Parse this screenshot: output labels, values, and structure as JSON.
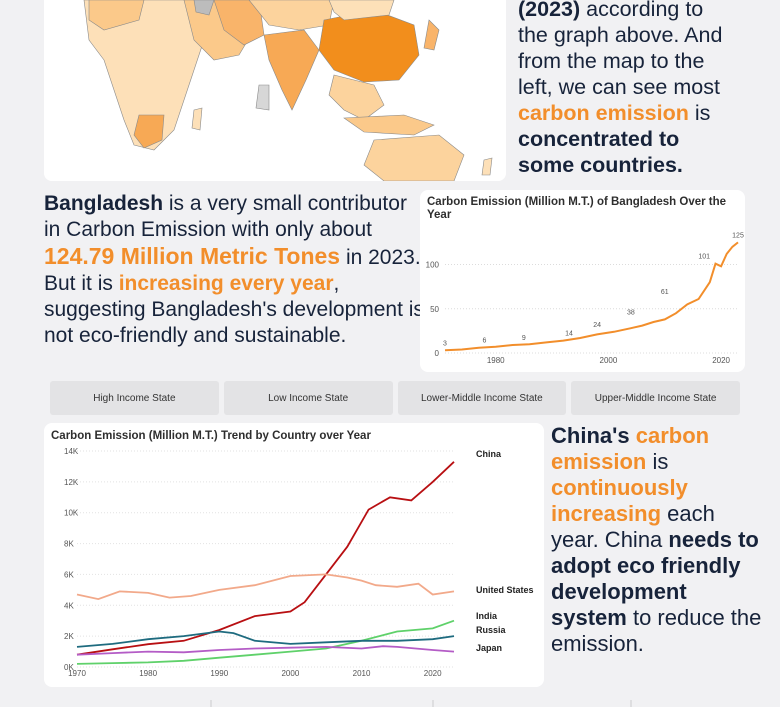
{
  "top_text": {
    "l1_bold": "(2023)",
    "l1_rest": " according to",
    "l2": "the graph above. And",
    "l3": "from the map to the",
    "l4": "left, we can  see most",
    "l5_orange": "carbon emission",
    "l5_rest": " is",
    "l6": "concentrated to",
    "l7": "some countries."
  },
  "bangladesh_text": {
    "country": "Bangladesh",
    "t1": " is a very small contributor in Carbon Emission with only about ",
    "amount": "124.79 Million Metric Tones",
    "t2": " in 2023. But it is ",
    "increasing": "increasing every year",
    "t3": ", suggesting Bangladesh's development is not eco-friendly and sustainable."
  },
  "china_text": {
    "china": "China's",
    "carbon_emission": "carbon emission",
    "is": " is ",
    "continuously": "continuously increasing",
    "t1": " each year. China ",
    "needs": "needs to adopt eco friendly development system",
    "t2": " to reduce the emission."
  },
  "tabs": [
    "High Income State",
    "Low Income State",
    "Lower-Middle Income State",
    "Upper-Middle Income State"
  ],
  "colors": {
    "accent": "#f28e2b",
    "text": "#17233a",
    "china": "#b80f12",
    "united_states": "#f2a98a",
    "india": "#5fd16a",
    "russia": "#1e6b7f",
    "japan": "#b45cc6",
    "bangladesh": "#f28e2b"
  },
  "chart_data": [
    {
      "type": "line",
      "title": "Carbon Emission (Million M.T.) of Bangladesh Over the Year",
      "x_ticks": [
        1980,
        2000,
        2020
      ],
      "y_ticks": [
        0,
        50,
        100
      ],
      "ylim": [
        0,
        130
      ],
      "xlim": [
        1971,
        2023
      ],
      "x": [
        1971,
        1974,
        1977,
        1980,
        1983,
        1986,
        1989,
        1992,
        1995,
        1998,
        2001,
        2004,
        2006,
        2008,
        2010,
        2012,
        2014,
        2016,
        2018,
        2019,
        2020,
        2021,
        2022,
        2023
      ],
      "values": [
        3,
        4,
        6,
        7,
        9,
        10,
        12,
        14,
        17,
        21,
        24,
        28,
        31,
        35,
        38,
        45,
        55,
        61,
        80,
        101,
        98,
        112,
        120,
        125
      ],
      "data_labels": [
        {
          "x": 1971,
          "y": 3,
          "text": "3"
        },
        {
          "x": 1978,
          "y": 6,
          "text": "6"
        },
        {
          "x": 1985,
          "y": 9,
          "text": "9"
        },
        {
          "x": 1993,
          "y": 14,
          "text": "14"
        },
        {
          "x": 1998,
          "y": 24,
          "text": "24"
        },
        {
          "x": 2004,
          "y": 38,
          "text": "38"
        },
        {
          "x": 2010,
          "y": 61,
          "text": "61"
        },
        {
          "x": 2017,
          "y": 101,
          "text": "101"
        },
        {
          "x": 2023,
          "y": 125,
          "text": "125"
        }
      ]
    },
    {
      "type": "line",
      "title": "Carbon Emission (Million M.T.) Trend by Country over Year",
      "x_ticks": [
        1970,
        1980,
        1990,
        2000,
        2010,
        2020
      ],
      "y_ticks": [
        "0K",
        "2K",
        "4K",
        "6K",
        "8K",
        "10K",
        "12K",
        "14K"
      ],
      "ylim": [
        0,
        14000
      ],
      "xlim": [
        1970,
        2023
      ],
      "series": [
        {
          "name": "China",
          "color": "#b80f12",
          "x": [
            1970,
            1975,
            1980,
            1985,
            1990,
            1995,
            2000,
            2002,
            2005,
            2008,
            2011,
            2014,
            2017,
            2020,
            2023
          ],
          "values": [
            800,
            1150,
            1480,
            1700,
            2400,
            3300,
            3600,
            4200,
            6000,
            7800,
            10200,
            11000,
            10800,
            12000,
            13300
          ]
        },
        {
          "name": "United States",
          "color": "#f2a98a",
          "x": [
            1970,
            1973,
            1976,
            1980,
            1983,
            1986,
            1990,
            1995,
            2000,
            2005,
            2008,
            2010,
            2012,
            2015,
            2018,
            2020,
            2023
          ],
          "values": [
            4700,
            4400,
            4900,
            4800,
            4500,
            4600,
            5000,
            5300,
            5900,
            6000,
            5800,
            5600,
            5300,
            5200,
            5400,
            4700,
            4900
          ]
        },
        {
          "name": "India",
          "color": "#5fd16a",
          "x": [
            1970,
            1975,
            1980,
            1985,
            1990,
            1995,
            2000,
            2005,
            2010,
            2015,
            2020,
            2023
          ],
          "values": [
            200,
            250,
            300,
            400,
            600,
            800,
            1000,
            1200,
            1700,
            2300,
            2500,
            3000
          ]
        },
        {
          "name": "Russia",
          "color": "#1e6b7f",
          "x": [
            1970,
            1975,
            1980,
            1985,
            1990,
            1992,
            1995,
            2000,
            2005,
            2010,
            2015,
            2020,
            2023
          ],
          "values": [
            1300,
            1500,
            1800,
            2000,
            2300,
            2200,
            1700,
            1500,
            1600,
            1700,
            1700,
            1800,
            2000
          ]
        },
        {
          "name": "Japan",
          "color": "#b45cc6",
          "x": [
            1970,
            1975,
            1980,
            1985,
            1990,
            1995,
            2000,
            2005,
            2010,
            2013,
            2015,
            2020,
            2023
          ],
          "values": [
            800,
            900,
            1000,
            950,
            1100,
            1200,
            1250,
            1300,
            1200,
            1350,
            1300,
            1100,
            1000
          ]
        }
      ]
    }
  ]
}
